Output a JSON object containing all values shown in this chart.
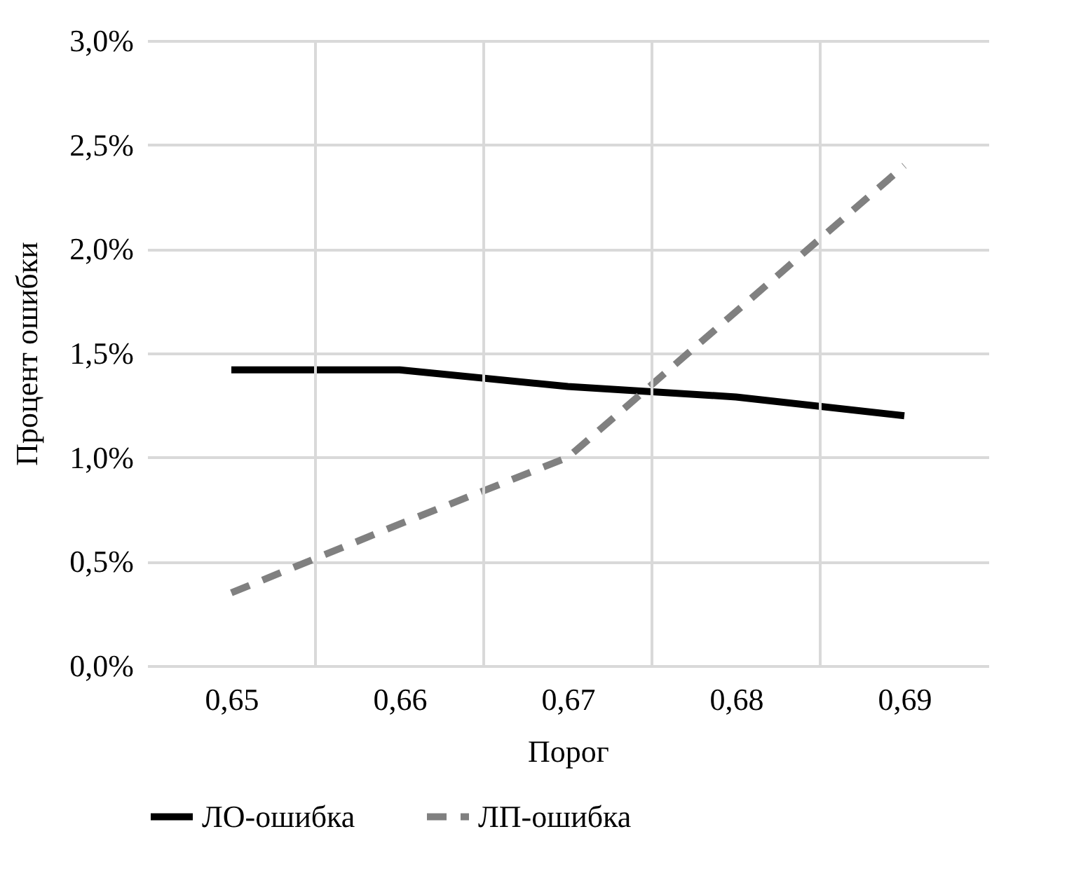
{
  "chart_data": {
    "type": "line",
    "xlabel": "Порог",
    "ylabel": "Процент ошибки",
    "categories": [
      "0,65",
      "0,66",
      "0,67",
      "0,68",
      "0,69"
    ],
    "series": [
      {
        "name": "ЛО-ошибка",
        "color": "#000000",
        "line_style": "solid",
        "values": [
          1.42,
          1.42,
          1.34,
          1.29,
          1.2
        ]
      },
      {
        "name": "ЛП-ошибка",
        "color": "#808080",
        "line_style": "dashed",
        "values": [
          0.35,
          0.68,
          1.0,
          1.7,
          2.4
        ]
      }
    ],
    "ylim": [
      0,
      3
    ],
    "yticks": [
      {
        "value": 0,
        "label": "0,0%"
      },
      {
        "value": 0.5,
        "label": "0,5%"
      },
      {
        "value": 1,
        "label": "1,0%"
      },
      {
        "value": 1.5,
        "label": "1,5%"
      },
      {
        "value": 2,
        "label": "2,0%"
      },
      {
        "value": 2.5,
        "label": "2,5%"
      },
      {
        "value": 3,
        "label": "3,0%"
      }
    ],
    "grid": true,
    "legend": "bottom",
    "marker": "none"
  }
}
